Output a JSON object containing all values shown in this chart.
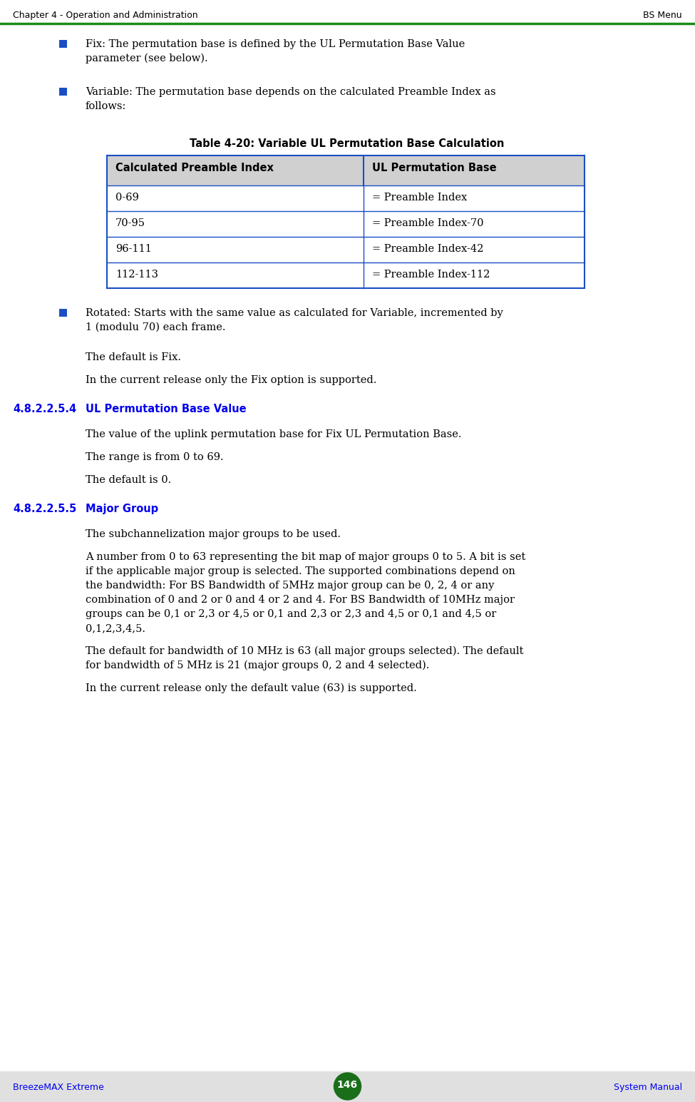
{
  "page_bg": "#ffffff",
  "footer_bg": "#e0e0e0",
  "header_left": "Chapter 4 - Operation and Administration",
  "header_right": "BS Menu",
  "header_line_color": "#1a8c1a",
  "footer_left": "BreezeMAX Extreme",
  "footer_center": "146",
  "footer_right": "System Manual",
  "footer_text_color": "#0000ee",
  "footer_circle_color": "#1a6e1a",
  "bullet_color": "#1a4fc4",
  "section_color": "#0000ee",
  "section_num_color": "#0000ee",
  "body_text_color": "#000000",
  "bullet1_line1": "Fix: The permutation base is defined by the UL Permutation Base Value",
  "bullet1_line2": "parameter (see below).",
  "bullet2_line1": "Variable: The permutation base depends on the calculated Preamble Index as",
  "bullet2_line2": "follows:",
  "table_title": "Table 4-20: Variable UL Permutation Base Calculation",
  "table_header_col1": "Calculated Preamble Index",
  "table_header_col2": "UL Permutation Base",
  "table_header_bg": "#d0d0d0",
  "table_border_color": "#1a4fc4",
  "table_rows": [
    [
      "0-69",
      "= Preamble Index"
    ],
    [
      "70-95",
      "= Preamble Index-70"
    ],
    [
      "96-111",
      "= Preamble Index-42"
    ],
    [
      "112-113",
      "= Preamble Index-112"
    ]
  ],
  "bullet3_line1": "Rotated: Starts with the same value as calculated for Variable, incremented by",
  "bullet3_line2": "1 (modulu 70) each frame.",
  "para_default_fix": "The default is Fix.",
  "para_current_fix": "In the current release only the Fix option is supported.",
  "section1_num": "4.8.2.2.5.4",
  "section1_title": "UL Permutation Base Value",
  "section1_para1": "The value of the uplink permutation base for Fix UL Permutation Base.",
  "section1_para2": "The range is from 0 to 69.",
  "section1_para3": "The default is 0.",
  "section2_num": "4.8.2.2.5.5",
  "section2_title": "Major Group",
  "section2_para1": "The subchannelization major groups to be used.",
  "section2_para2a": "A number from 0 to 63 representing the bit map of major groups 0 to 5. A bit is set",
  "section2_para2b": "if the applicable major group is selected. The supported combinations depend on",
  "section2_para2c": "the bandwidth: For BS Bandwidth of 5MHz major group can be 0, 2, 4 or any",
  "section2_para2d": "combination of 0 and 2 or 0 and 4 or 2 and 4. For BS Bandwidth of 10MHz major",
  "section2_para2e": "groups can be 0,1 or 2,3 or 4,5 or 0,1 and 2,3 or 2,3 and 4,5 or 0,1 and 4,5 or",
  "section2_para2f": "0,1,2,3,4,5.",
  "section2_para3a": "The default for bandwidth of 10 MHz is 63 (all major groups selected). The default",
  "section2_para3b": "for bandwidth of 5 MHz is 21 (major groups 0, 2 and 4 selected).",
  "section2_para4": "In the current release only the default value (63) is supported."
}
